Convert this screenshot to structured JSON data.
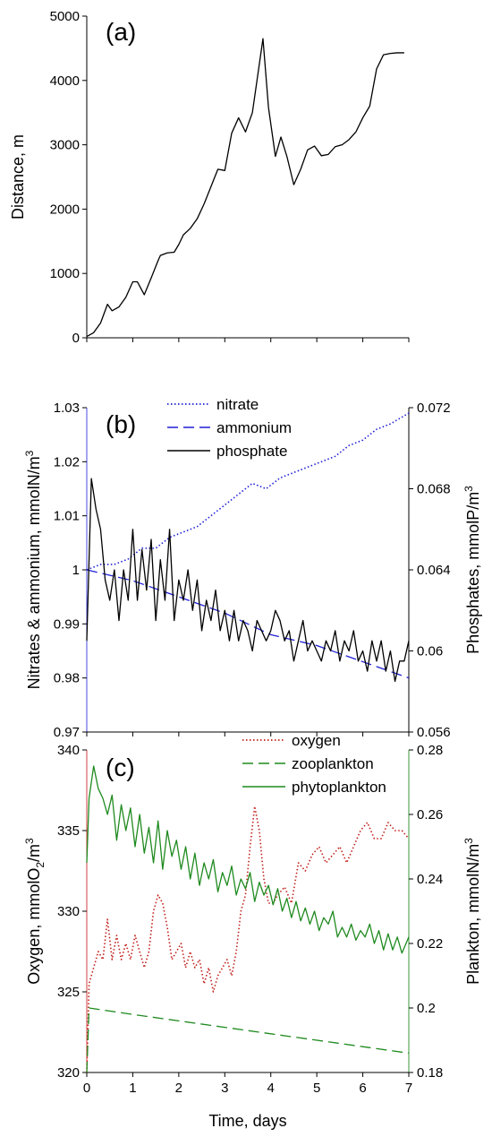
{
  "chart_data": [
    {
      "type": "line",
      "panel_label": "(a)",
      "xlabel": "",
      "ylabel": "Distance, m",
      "xlim": [
        0,
        7
      ],
      "ylim": [
        0,
        5000
      ],
      "y_ticks": [
        "0",
        "1000",
        "2000",
        "3000",
        "4000",
        "5000"
      ],
      "series": [
        {
          "color": "#000000",
          "style": "solid",
          "x": [
            0,
            0.15,
            0.3,
            0.45,
            0.55,
            0.7,
            0.85,
            1.0,
            1.1,
            1.25,
            1.4,
            1.55,
            1.6,
            1.75,
            1.9,
            2.0,
            2.1,
            2.25,
            2.4,
            2.55,
            2.7,
            2.85,
            3.0,
            3.15,
            3.3,
            3.45,
            3.6,
            3.75,
            3.83,
            3.95,
            4.1,
            4.22,
            4.35,
            4.5,
            4.65,
            4.8,
            4.95,
            5.1,
            5.25,
            5.4,
            5.55,
            5.7,
            5.85,
            6.0,
            6.15,
            6.3,
            6.45,
            6.6,
            6.75,
            6.9
          ],
          "y": [
            20,
            80,
            230,
            520,
            420,
            480,
            630,
            870,
            870,
            670,
            930,
            1200,
            1280,
            1320,
            1330,
            1450,
            1600,
            1700,
            1850,
            2080,
            2350,
            2620,
            2600,
            3180,
            3420,
            3200,
            3500,
            4250,
            4650,
            3580,
            2820,
            3120,
            2820,
            2380,
            2620,
            2920,
            2980,
            2830,
            2850,
            2970,
            3000,
            3080,
            3200,
            3420,
            3600,
            4180,
            4400,
            4420,
            4430,
            4430
          ]
        }
      ]
    },
    {
      "type": "line",
      "panel_label": "(b)",
      "xlabel": "",
      "ylabel_left": "Nitrates & ammonium, mmolN/m",
      "ylabel_left_sup": "3",
      "ylabel_right": "Phosphates, mmolP/m",
      "ylabel_right_sup": "3",
      "xlim": [
        0,
        7
      ],
      "ylim_left": [
        0.97,
        1.03
      ],
      "ylim_right": [
        0.056,
        0.072
      ],
      "y_ticks_left": [
        "0.97",
        "0.98",
        "0.99",
        "1",
        "1.01",
        "1.02",
        "1.03"
      ],
      "y_ticks_right": [
        "0.056",
        "0.06",
        "0.064",
        "0.068",
        "0.072"
      ],
      "legend": [
        "nitrate",
        "ammonium",
        "phosphate"
      ],
      "legend_position": "top-center",
      "series": [
        {
          "name": "nitrate",
          "axis": "left",
          "color": "#1f1fd6",
          "style": "dotted",
          "x": [
            0,
            0.3,
            0.6,
            0.9,
            1.2,
            1.5,
            1.8,
            2.1,
            2.4,
            2.7,
            3.0,
            3.3,
            3.6,
            3.9,
            4.2,
            4.5,
            4.8,
            5.1,
            5.4,
            5.7,
            6.0,
            6.3,
            6.6,
            7.0
          ],
          "y": [
            1.0,
            1.001,
            1.001,
            1.002,
            1.004,
            1.004,
            1.006,
            1.007,
            1.008,
            1.01,
            1.012,
            1.014,
            1.016,
            1.015,
            1.017,
            1.018,
            1.019,
            1.02,
            1.021,
            1.023,
            1.024,
            1.026,
            1.027,
            1.029
          ]
        },
        {
          "name": "ammonium",
          "axis": "left",
          "color": "#1f1fd6",
          "style": "dashed",
          "x": [
            0,
            1,
            2,
            3,
            4,
            5,
            6,
            7
          ],
          "y": [
            1.0,
            0.998,
            0.995,
            0.992,
            0.988,
            0.986,
            0.983,
            0.98
          ]
        },
        {
          "name": "phosphate",
          "axis": "right",
          "color": "#000000",
          "style": "solid",
          "x": [
            0,
            0.1,
            0.2,
            0.3,
            0.4,
            0.5,
            0.6,
            0.7,
            0.8,
            0.9,
            1.0,
            1.1,
            1.2,
            1.3,
            1.4,
            1.5,
            1.6,
            1.7,
            1.8,
            1.9,
            2.0,
            2.1,
            2.2,
            2.3,
            2.4,
            2.5,
            2.6,
            2.7,
            2.8,
            2.9,
            3.0,
            3.1,
            3.2,
            3.3,
            3.4,
            3.5,
            3.6,
            3.7,
            3.8,
            3.9,
            4.0,
            4.1,
            4.2,
            4.3,
            4.4,
            4.5,
            4.6,
            4.7,
            4.8,
            4.9,
            5.0,
            5.1,
            5.2,
            5.3,
            5.4,
            5.5,
            5.6,
            5.7,
            5.8,
            5.9,
            6.0,
            6.1,
            6.2,
            6.3,
            6.4,
            6.5,
            6.6,
            6.7,
            6.8,
            6.9,
            7.0
          ],
          "y": [
            0.0605,
            0.0685,
            0.067,
            0.066,
            0.0635,
            0.0625,
            0.064,
            0.0615,
            0.064,
            0.0625,
            0.066,
            0.0625,
            0.065,
            0.063,
            0.0655,
            0.0615,
            0.0645,
            0.0625,
            0.066,
            0.0615,
            0.0635,
            0.0625,
            0.064,
            0.062,
            0.0635,
            0.061,
            0.0625,
            0.0615,
            0.063,
            0.061,
            0.062,
            0.0605,
            0.062,
            0.0605,
            0.0615,
            0.061,
            0.06,
            0.0615,
            0.061,
            0.0605,
            0.061,
            0.062,
            0.0615,
            0.0605,
            0.061,
            0.0595,
            0.0605,
            0.0615,
            0.06,
            0.0605,
            0.06,
            0.0595,
            0.0605,
            0.06,
            0.061,
            0.0595,
            0.0605,
            0.06,
            0.061,
            0.0595,
            0.06,
            0.059,
            0.0605,
            0.0595,
            0.0605,
            0.059,
            0.06,
            0.0585,
            0.0595,
            0.0595,
            0.0605
          ]
        }
      ]
    },
    {
      "type": "line",
      "panel_label": "(c)",
      "xlabel": "Time, days",
      "ylabel_left": "Oxygen, mmolO",
      "ylabel_left_sub": "2",
      "ylabel_left_tail": "/m",
      "ylabel_left_sup": "3",
      "ylabel_right": "Plankton, mmolN/m",
      "ylabel_right_sup": "3",
      "xlim": [
        0,
        7
      ],
      "ylim_left": [
        320,
        340
      ],
      "ylim_right": [
        0.18,
        0.28
      ],
      "x_ticks": [
        "0",
        "1",
        "2",
        "3",
        "4",
        "5",
        "6",
        "7"
      ],
      "y_ticks_left": [
        "320",
        "325",
        "330",
        "335",
        "340"
      ],
      "y_ticks_right": [
        "0.18",
        "0.2",
        "0.22",
        "0.24",
        "0.26",
        "0.28"
      ],
      "legend": [
        "oxygen",
        "zooplankton",
        "phytoplankton"
      ],
      "legend_position": "top-right",
      "series": [
        {
          "name": "oxygen",
          "axis": "left",
          "color": "#c0201a",
          "style": "dotted",
          "x": [
            0,
            0.05,
            0.15,
            0.25,
            0.35,
            0.45,
            0.55,
            0.65,
            0.75,
            0.85,
            0.95,
            1.05,
            1.15,
            1.25,
            1.35,
            1.45,
            1.55,
            1.65,
            1.75,
            1.85,
            1.95,
            2.05,
            2.15,
            2.25,
            2.35,
            2.45,
            2.55,
            2.65,
            2.75,
            2.85,
            2.95,
            3.05,
            3.15,
            3.25,
            3.35,
            3.45,
            3.55,
            3.65,
            3.75,
            3.85,
            3.95,
            4.05,
            4.15,
            4.3,
            4.45,
            4.6,
            4.75,
            4.9,
            5.05,
            5.2,
            5.35,
            5.5,
            5.65,
            5.8,
            5.95,
            6.1,
            6.25,
            6.4,
            6.55,
            6.7,
            6.85,
            7.0
          ],
          "y": [
            320,
            325.5,
            326.5,
            327.5,
            327,
            329.5,
            327,
            328.5,
            327,
            328,
            327,
            328.5,
            327.5,
            326.5,
            327.5,
            330,
            331,
            330.5,
            329,
            327,
            327.5,
            328,
            326.5,
            327.5,
            326.5,
            327,
            325.5,
            326.5,
            325,
            326,
            326.5,
            327,
            326,
            327.5,
            330,
            331,
            334,
            336.5,
            335,
            332,
            330.5,
            330.5,
            331,
            331.5,
            330.5,
            333,
            332.5,
            333.5,
            334,
            333,
            333.5,
            334,
            333,
            334,
            335,
            335.5,
            334.5,
            334.5,
            335.5,
            335,
            335,
            334.5
          ]
        },
        {
          "name": "zooplankton",
          "axis": "right",
          "color": "#1f8a1f",
          "style": "dashed",
          "x": [
            0,
            0.05,
            1,
            2,
            3,
            4,
            5,
            6,
            7
          ],
          "y": [
            0.18,
            0.2,
            0.198,
            0.196,
            0.194,
            0.192,
            0.19,
            0.188,
            0.186
          ]
        },
        {
          "name": "phytoplankton",
          "axis": "right",
          "color": "#1f8a1f",
          "style": "solid",
          "x": [
            0,
            0.05,
            0.15,
            0.25,
            0.35,
            0.45,
            0.55,
            0.65,
            0.75,
            0.85,
            0.95,
            1.05,
            1.15,
            1.25,
            1.35,
            1.45,
            1.55,
            1.65,
            1.75,
            1.85,
            1.95,
            2.05,
            2.15,
            2.25,
            2.35,
            2.45,
            2.55,
            2.65,
            2.75,
            2.85,
            2.95,
            3.05,
            3.15,
            3.25,
            3.35,
            3.45,
            3.55,
            3.65,
            3.75,
            3.85,
            3.95,
            4.05,
            4.15,
            4.25,
            4.35,
            4.45,
            4.55,
            4.65,
            4.75,
            4.85,
            4.95,
            5.05,
            5.15,
            5.25,
            5.35,
            5.45,
            5.55,
            5.65,
            5.75,
            5.85,
            5.95,
            6.05,
            6.15,
            6.25,
            6.35,
            6.45,
            6.55,
            6.65,
            6.75,
            6.85,
            7.0
          ],
          "y": [
            0.245,
            0.265,
            0.275,
            0.268,
            0.265,
            0.26,
            0.266,
            0.252,
            0.263,
            0.255,
            0.262,
            0.25,
            0.26,
            0.248,
            0.256,
            0.245,
            0.258,
            0.243,
            0.255,
            0.247,
            0.252,
            0.243,
            0.25,
            0.24,
            0.248,
            0.238,
            0.245,
            0.24,
            0.246,
            0.236,
            0.242,
            0.238,
            0.244,
            0.235,
            0.24,
            0.237,
            0.242,
            0.233,
            0.239,
            0.235,
            0.238,
            0.232,
            0.237,
            0.23,
            0.234,
            0.228,
            0.233,
            0.227,
            0.231,
            0.226,
            0.23,
            0.224,
            0.228,
            0.226,
            0.23,
            0.222,
            0.225,
            0.222,
            0.226,
            0.221,
            0.224,
            0.222,
            0.226,
            0.22,
            0.224,
            0.218,
            0.223,
            0.218,
            0.222,
            0.217,
            0.222
          ]
        }
      ]
    }
  ]
}
